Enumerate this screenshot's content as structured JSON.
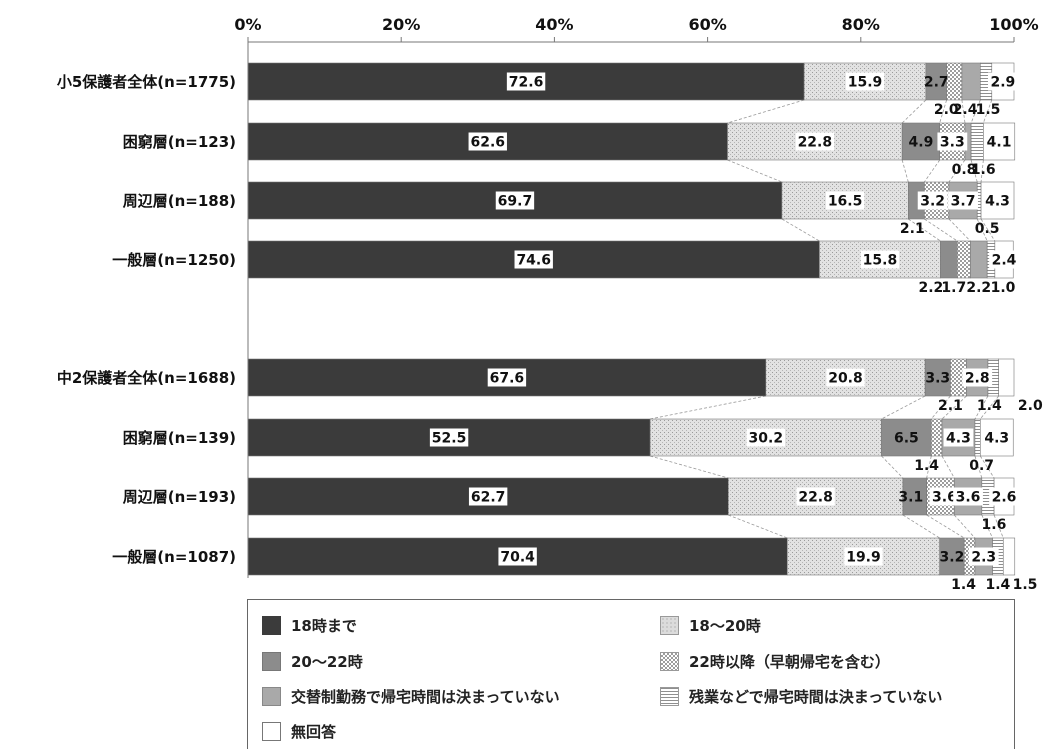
{
  "chart_data": {
    "type": "bar",
    "orientation": "horizontal",
    "stacked": true,
    "xlim": [
      0,
      100
    ],
    "x_ticks": [
      "0%",
      "20%",
      "40%",
      "60%",
      "80%",
      "100%"
    ],
    "categories": [
      "小5保護者全体(n=1775)",
      "困窮層(n=123)",
      "周辺層(n=188)",
      "一般層(n=1250)",
      "中2保護者全体(n=1688)",
      "困窮層(n=139)",
      "周辺層(n=193)",
      "一般層(n=1087)"
    ],
    "series": [
      {
        "name": "18時まで",
        "values": [
          72.6,
          62.6,
          69.7,
          74.6,
          67.6,
          52.5,
          62.7,
          70.4
        ]
      },
      {
        "name": "18～20時",
        "values": [
          15.9,
          22.8,
          16.5,
          15.8,
          20.8,
          30.2,
          22.8,
          19.9
        ]
      },
      {
        "name": "20～22時",
        "values": [
          2.7,
          4.9,
          2.1,
          2.2,
          3.3,
          6.5,
          3.1,
          3.2
        ]
      },
      {
        "name": "22時以降（早朝帰宅を含む）",
        "values": [
          2.0,
          3.3,
          3.2,
          1.7,
          2.1,
          1.4,
          3.6,
          1.4
        ]
      },
      {
        "name": "交替制勤務で帰宅時間は決まっていない",
        "values": [
          2.4,
          0.8,
          3.7,
          2.2,
          2.8,
          4.3,
          3.6,
          2.3
        ]
      },
      {
        "name": "残業などで帰宅時間は決まっていない",
        "values": [
          1.5,
          1.6,
          0.5,
          1.0,
          1.4,
          0.7,
          1.6,
          1.4
        ]
      },
      {
        "name": "無回答",
        "values": [
          2.9,
          4.1,
          4.3,
          2.4,
          2.0,
          4.3,
          2.6,
          1.5
        ]
      }
    ],
    "colors": [
      "#3b3b3b",
      "#dcdcdc",
      "#8c8c8c",
      "#f2f2f2",
      "#a9a9a9",
      "#f6f6f6",
      "#ffffff"
    ],
    "patterns": [
      "solid",
      "light-dots",
      "solid",
      "checker",
      "solid",
      "hlines",
      "none"
    ],
    "legend_placement": "bottom",
    "grid": false
  }
}
